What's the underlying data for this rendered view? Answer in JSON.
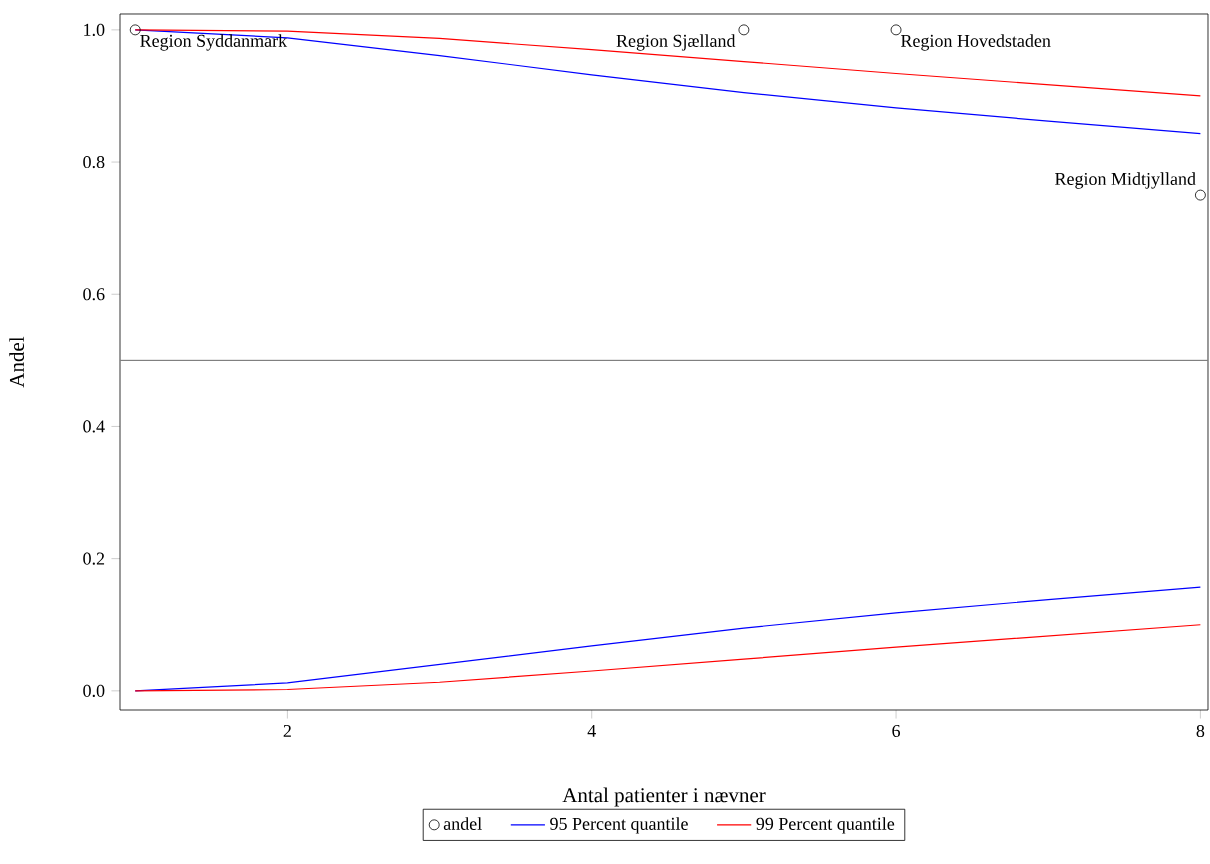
{
  "chart_data": {
    "type": "line",
    "xlabel": "Antal patienter i nævner",
    "ylabel": "Andel",
    "x": [
      1,
      2,
      3,
      4,
      5,
      6,
      7,
      8
    ],
    "series": [
      {
        "name": "andel",
        "type": "scatter",
        "marker": "circle",
        "color": "#000000",
        "x": [
          1,
          5,
          6,
          8
        ],
        "values": [
          1.0,
          1.0,
          1.0,
          0.75
        ]
      },
      {
        "name": "95 Percent quantile",
        "type": "line",
        "color": "#0000ff",
        "values": [
          1.0,
          0.988,
          0.961,
          0.932,
          0.905,
          0.882,
          0.862,
          0.843
        ]
      },
      {
        "type": "line",
        "color": "#0000ff",
        "values": [
          0.0,
          0.012,
          0.04,
          0.068,
          0.095,
          0.118,
          0.138,
          0.157
        ]
      },
      {
        "name": "99 Percent quantile",
        "type": "line",
        "color": "#ff0000",
        "values": [
          1.0,
          0.998,
          0.987,
          0.97,
          0.952,
          0.934,
          0.917,
          0.9
        ]
      },
      {
        "type": "line",
        "color": "#ff0000",
        "values": [
          0.0,
          0.002,
          0.013,
          0.03,
          0.048,
          0.066,
          0.083,
          0.1
        ]
      }
    ],
    "xlim": [
      0.9,
      8.05
    ],
    "ylim": [
      -0.029,
      1.024
    ],
    "xticks": [
      2,
      4,
      6,
      8
    ],
    "yticks": [
      {
        "value": 0,
        "label": "0.0"
      },
      {
        "value": 0.2,
        "label": "0.2"
      },
      {
        "value": 0.4,
        "label": "0.4"
      },
      {
        "value": 0.6,
        "label": "0.6"
      },
      {
        "value": 0.8,
        "label": "0.8"
      },
      {
        "value": 1,
        "label": "1.0"
      }
    ],
    "ref_lines": [
      {
        "axis": "y",
        "value": 0.5,
        "color": "#808080"
      }
    ],
    "annotations": [
      {
        "text": "Region Syddanmark",
        "x": 1,
        "y": 1.0
      },
      {
        "text": "Region Sjælland",
        "x": 5,
        "y": 1.0
      },
      {
        "text": "Region Hovedstaden",
        "x": 6,
        "y": 1.0
      },
      {
        "text": "Region Midtjylland",
        "x": 8,
        "y": 0.75
      }
    ],
    "legend": "bottom"
  }
}
